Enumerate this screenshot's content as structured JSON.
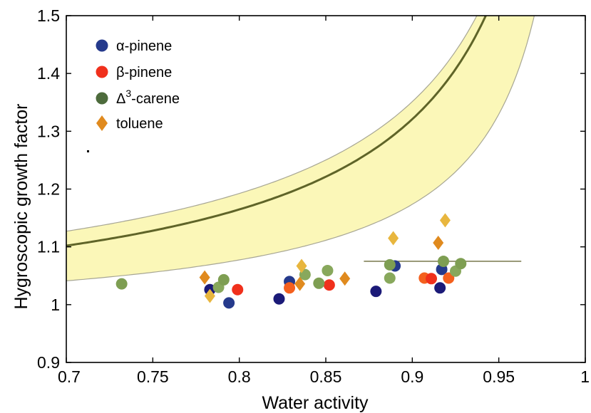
{
  "chart_data": {
    "type": "scatter",
    "xlabel": "Water activity",
    "ylabel": "Hygroscopic growth factor",
    "xlim": [
      0.7,
      1.0
    ],
    "ylim": [
      0.9,
      1.5
    ],
    "x_ticks": [
      "0.7",
      "0.75",
      "0.8",
      "0.85",
      "0.9",
      "0.95",
      "1"
    ],
    "y_ticks": [
      "0.9",
      "1",
      "1.1",
      "1.2",
      "1.3",
      "1.4",
      "1.5"
    ],
    "legend_position": "top-left",
    "legend": [
      {
        "label": "α-pinene",
        "marker": "circle",
        "color": "#253a8c"
      },
      {
        "label": "β-pinene",
        "marker": "circle",
        "color": "#f0301c"
      },
      {
        "label": "Δ",
        "sup": "3",
        "suffix": "-carene",
        "marker": "circle",
        "color": "#4d6b3c"
      },
      {
        "label": "toluene",
        "marker": "diamond",
        "color": "#e08a1e"
      }
    ],
    "band_color": "#fbf7b8",
    "curve_color": "#5f6428",
    "series": [
      {
        "name": "α-pinene",
        "marker": "circle",
        "colors": [
          "#1b1a78",
          "#253a8c"
        ],
        "points": [
          {
            "x": 0.783,
            "y": 1.026
          },
          {
            "x": 0.794,
            "y": 1.003
          },
          {
            "x": 0.823,
            "y": 1.01
          },
          {
            "x": 0.829,
            "y": 1.04
          },
          {
            "x": 0.879,
            "y": 1.023
          },
          {
            "x": 0.89,
            "y": 1.067
          },
          {
            "x": 0.916,
            "y": 1.029
          },
          {
            "x": 0.917,
            "y": 1.061
          }
        ]
      },
      {
        "name": "β-pinene",
        "marker": "circle",
        "colors": [
          "#f0301c",
          "#f4601e"
        ],
        "points": [
          {
            "x": 0.799,
            "y": 1.026
          },
          {
            "x": 0.829,
            "y": 1.029
          },
          {
            "x": 0.852,
            "y": 1.034
          },
          {
            "x": 0.907,
            "y": 1.046
          },
          {
            "x": 0.911,
            "y": 1.045
          },
          {
            "x": 0.921,
            "y": 1.046
          }
        ]
      },
      {
        "name": "Δ3-carene",
        "marker": "circle",
        "colors": [
          "#7e9e52",
          "#88a85c"
        ],
        "points": [
          {
            "x": 0.732,
            "y": 1.036
          },
          {
            "x": 0.788,
            "y": 1.03
          },
          {
            "x": 0.791,
            "y": 1.043
          },
          {
            "x": 0.838,
            "y": 1.052
          },
          {
            "x": 0.846,
            "y": 1.037
          },
          {
            "x": 0.851,
            "y": 1.059
          },
          {
            "x": 0.887,
            "y": 1.069
          },
          {
            "x": 0.887,
            "y": 1.046
          },
          {
            "x": 0.918,
            "y": 1.075
          },
          {
            "x": 0.925,
            "y": 1.058
          },
          {
            "x": 0.928,
            "y": 1.071
          }
        ]
      },
      {
        "name": "toluene",
        "marker": "diamond",
        "colors": [
          "#e08a1e",
          "#e8b63e"
        ],
        "points": [
          {
            "x": 0.78,
            "y": 1.047
          },
          {
            "x": 0.783,
            "y": 1.015
          },
          {
            "x": 0.835,
            "y": 1.036
          },
          {
            "x": 0.836,
            "y": 1.067
          },
          {
            "x": 0.861,
            "y": 1.045
          },
          {
            "x": 0.889,
            "y": 1.115
          },
          {
            "x": 0.915,
            "y": 1.107
          },
          {
            "x": 0.919,
            "y": 1.146
          }
        ]
      }
    ],
    "error_bar": {
      "x": 0.918,
      "y": 1.075,
      "xmin": 0.872,
      "xmax": 0.963
    }
  }
}
